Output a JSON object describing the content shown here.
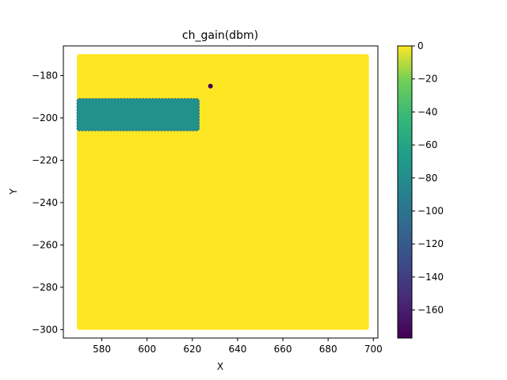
{
  "chart_data": {
    "type": "heatmap",
    "title": "ch_gain(dbm)",
    "xlabel": "X",
    "ylabel": "Y",
    "xlim": [
      563,
      702
    ],
    "ylim": [
      -304,
      -166
    ],
    "xticks": [
      580,
      600,
      620,
      640,
      660,
      680,
      700
    ],
    "yticks": [
      -180,
      -200,
      -220,
      -240,
      -260,
      -280,
      -300
    ],
    "colormap": "viridis",
    "colorbar": {
      "range": [
        -177,
        0
      ],
      "ticks": [
        0,
        -20,
        -40,
        -60,
        -80,
        -100,
        -120,
        -140,
        -160
      ]
    },
    "regions": [
      {
        "name": "background",
        "x_range": [
          570,
          697
        ],
        "y_range": [
          -299,
          -171
        ],
        "value": 0,
        "color": "#fde725"
      },
      {
        "name": "low-gain-block",
        "x_range": [
          570,
          622
        ],
        "y_range": [
          -205,
          -192
        ],
        "value": -75,
        "color": "#21918c"
      },
      {
        "name": "min-spot",
        "x": 628,
        "y": -185,
        "value": -177,
        "color": "#440154"
      }
    ]
  }
}
